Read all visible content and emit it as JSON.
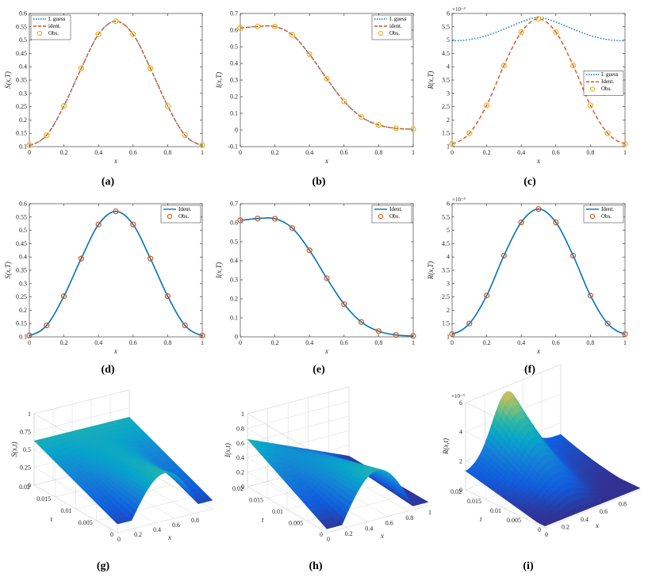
{
  "figure": {
    "captions": [
      "(a)",
      "(b)",
      "(c)",
      "(d)",
      "(e)",
      "(f)",
      "(g)",
      "(h)",
      "(i)"
    ]
  },
  "colors": {
    "guess": "#0072BD",
    "ident_dashed": "#D95319",
    "obs_yellow": "#EDB120",
    "ident_solid": "#0072BD",
    "obs_red": "#D95319",
    "axis": "#262626"
  },
  "chart_data": [
    {
      "id": "a",
      "type": "line",
      "xlabel": "x",
      "ylabel": "S(x,T)",
      "xlim": [
        0,
        1
      ],
      "ylim": [
        0.1,
        0.6
      ],
      "xticks": [
        "0",
        "0.2",
        "0.4",
        "0.6",
        "0.8",
        "1"
      ],
      "yticks": [
        "0.1",
        "0.15",
        "0.2",
        "0.25",
        "0.3",
        "0.35",
        "0.4",
        "0.45",
        "0.5",
        "0.55",
        "0.6"
      ],
      "legend": {
        "position": "top-left",
        "entries": [
          "I. guess",
          "ident.",
          "Obs."
        ]
      },
      "x": [
        0,
        0.1,
        0.2,
        0.3,
        0.4,
        0.5,
        0.6,
        0.7,
        0.8,
        0.9,
        1.0
      ],
      "series": [
        {
          "name": "I. guess",
          "style": "dotted",
          "values": [
            0.105,
            0.143,
            0.253,
            0.394,
            0.522,
            0.571,
            0.522,
            0.394,
            0.253,
            0.143,
            0.105
          ]
        },
        {
          "name": "ident.",
          "style": "dashed",
          "values": [
            0.105,
            0.143,
            0.253,
            0.394,
            0.522,
            0.571,
            0.522,
            0.394,
            0.253,
            0.143,
            0.105
          ]
        },
        {
          "name": "Obs.",
          "style": "marker",
          "values": [
            0.105,
            0.143,
            0.253,
            0.394,
            0.522,
            0.571,
            0.522,
            0.394,
            0.253,
            0.143,
            0.105
          ]
        }
      ]
    },
    {
      "id": "b",
      "type": "line",
      "xlabel": "x",
      "ylabel": "I(x,T)",
      "xlim": [
        0,
        1
      ],
      "ylim": [
        -0.1,
        0.7
      ],
      "xticks": [
        "0",
        "0.2",
        "0.4",
        "0.6",
        "0.8",
        "1"
      ],
      "yticks": [
        "-0.1",
        "0",
        "0.1",
        "0.2",
        "0.3",
        "0.4",
        "0.5",
        "0.6",
        "0.7"
      ],
      "legend": {
        "position": "top-right",
        "entries": [
          "I. guess",
          "ident.",
          "Obs."
        ]
      },
      "x": [
        0,
        0.1,
        0.2,
        0.3,
        0.4,
        0.5,
        0.6,
        0.7,
        0.8,
        0.9,
        1.0
      ],
      "series": [
        {
          "name": "I. guess",
          "style": "dotted",
          "values": [
            0.613,
            0.622,
            0.621,
            0.572,
            0.455,
            0.308,
            0.172,
            0.078,
            0.03,
            0.01,
            0.005
          ]
        },
        {
          "name": "ident.",
          "style": "dashed",
          "values": [
            0.613,
            0.622,
            0.621,
            0.572,
            0.455,
            0.308,
            0.172,
            0.078,
            0.03,
            0.01,
            0.005
          ]
        },
        {
          "name": "Obs.",
          "style": "marker",
          "values": [
            0.613,
            0.622,
            0.621,
            0.572,
            0.455,
            0.308,
            0.172,
            0.078,
            0.03,
            0.01,
            0.005
          ]
        }
      ]
    },
    {
      "id": "c",
      "type": "line",
      "xlabel": "x",
      "ylabel": "R(x,T)",
      "y_multiplier": "×10⁻³",
      "xlim": [
        0,
        1
      ],
      "ylim": [
        1,
        6
      ],
      "xticks": [
        "0",
        "0.2",
        "0.4",
        "0.6",
        "0.8",
        "1"
      ],
      "yticks": [
        "1",
        "1.5",
        "2",
        "2.5",
        "3",
        "3.5",
        "4",
        "4.5",
        "5",
        "5.5",
        "6"
      ],
      "legend": {
        "position": "right",
        "entries": [
          "I. guess",
          "Ident.",
          "Obs."
        ]
      },
      "x": [
        0,
        0.1,
        0.2,
        0.3,
        0.4,
        0.5,
        0.6,
        0.7,
        0.8,
        0.9,
        1.0
      ],
      "series": [
        {
          "name": "I. guess",
          "style": "dotted",
          "values": [
            4.97,
            5.02,
            5.17,
            5.41,
            5.68,
            5.85,
            5.68,
            5.41,
            5.17,
            5.02,
            4.97
          ]
        },
        {
          "name": "Ident.",
          "style": "dashed",
          "values": [
            1.1,
            1.5,
            2.55,
            4.05,
            5.3,
            5.8,
            5.3,
            4.05,
            2.55,
            1.5,
            1.1
          ]
        },
        {
          "name": "Obs.",
          "style": "marker",
          "values": [
            1.1,
            1.5,
            2.55,
            4.05,
            5.3,
            5.8,
            5.3,
            4.05,
            2.55,
            1.5,
            1.1
          ]
        }
      ]
    },
    {
      "id": "d",
      "type": "line",
      "xlabel": "x",
      "ylabel": "S(x,T)",
      "xlim": [
        0,
        1
      ],
      "ylim": [
        0.1,
        0.6
      ],
      "xticks": [
        "0",
        "0.2",
        "0.4",
        "0.6",
        "0.8",
        "1"
      ],
      "yticks": [
        "0.1",
        "0.15",
        "0.2",
        "0.25",
        "0.3",
        "0.35",
        "0.4",
        "0.45",
        "0.5",
        "0.55",
        "0.6"
      ],
      "legend": {
        "position": "top-right",
        "entries": [
          "Ident.",
          "Obs."
        ]
      },
      "x": [
        0,
        0.1,
        0.2,
        0.3,
        0.4,
        0.5,
        0.6,
        0.7,
        0.8,
        0.9,
        1.0
      ],
      "series": [
        {
          "name": "Ident.",
          "style": "solid",
          "values": [
            0.105,
            0.143,
            0.253,
            0.394,
            0.522,
            0.571,
            0.522,
            0.394,
            0.253,
            0.143,
            0.105
          ]
        },
        {
          "name": "Obs.",
          "style": "marker",
          "values": [
            0.105,
            0.143,
            0.253,
            0.394,
            0.522,
            0.571,
            0.522,
            0.394,
            0.253,
            0.143,
            0.105
          ]
        }
      ]
    },
    {
      "id": "e",
      "type": "line",
      "xlabel": "x",
      "ylabel": "I(x,T)",
      "xlim": [
        0,
        1
      ],
      "ylim": [
        0,
        0.7
      ],
      "xticks": [
        "0",
        "0.2",
        "0.4",
        "0.6",
        "0.8",
        "1"
      ],
      "yticks": [
        "0",
        "0.1",
        "0.2",
        "0.3",
        "0.4",
        "0.5",
        "0.6",
        "0.7"
      ],
      "legend": {
        "position": "top-right",
        "entries": [
          "Ident.",
          "Obs."
        ]
      },
      "x": [
        0,
        0.1,
        0.2,
        0.3,
        0.4,
        0.5,
        0.6,
        0.7,
        0.8,
        0.9,
        1.0
      ],
      "series": [
        {
          "name": "Ident.",
          "style": "solid",
          "values": [
            0.613,
            0.622,
            0.621,
            0.572,
            0.455,
            0.308,
            0.172,
            0.078,
            0.03,
            0.01,
            0.005
          ]
        },
        {
          "name": "Obs.",
          "style": "marker",
          "values": [
            0.613,
            0.622,
            0.621,
            0.572,
            0.455,
            0.308,
            0.172,
            0.078,
            0.03,
            0.01,
            0.005
          ]
        }
      ]
    },
    {
      "id": "f",
      "type": "line",
      "xlabel": "x",
      "ylabel": "R(x,T)",
      "y_multiplier": "×10⁻³",
      "xlim": [
        0,
        1
      ],
      "ylim": [
        1,
        6
      ],
      "xticks": [
        "0",
        "0.2",
        "0.4",
        "0.6",
        "0.8",
        "1"
      ],
      "yticks": [
        "1",
        "1.5",
        "2",
        "2.5",
        "3",
        "3.5",
        "4",
        "4.5",
        "5",
        "5.5",
        "6"
      ],
      "legend": {
        "position": "top-right",
        "entries": [
          "Ident.",
          "Obs."
        ]
      },
      "x": [
        0,
        0.1,
        0.2,
        0.3,
        0.4,
        0.5,
        0.6,
        0.7,
        0.8,
        0.9,
        1.0
      ],
      "series": [
        {
          "name": "Ident.",
          "style": "solid",
          "values": [
            1.1,
            1.5,
            2.55,
            4.05,
            5.3,
            5.8,
            5.3,
            4.05,
            2.55,
            1.5,
            1.1
          ]
        },
        {
          "name": "Obs.",
          "style": "marker",
          "values": [
            1.1,
            1.5,
            2.55,
            4.05,
            5.3,
            5.8,
            5.3,
            4.05,
            2.55,
            1.5,
            1.1
          ]
        }
      ]
    },
    {
      "id": "g",
      "type": "surface",
      "zlabel": "S(x,t)",
      "xlabel": "x",
      "ylabel": "t",
      "zticks": [
        "0",
        "0.25",
        "0.5",
        "0.75",
        "1"
      ],
      "xticks": [
        "0",
        "0.2",
        "0.4",
        "0.6",
        "0.8"
      ],
      "tticks": [
        "0",
        "0.005",
        "0.01",
        "0.015",
        "0.02"
      ],
      "zlim": [
        0,
        1
      ]
    },
    {
      "id": "h",
      "type": "surface",
      "zlabel": "I(x,t)",
      "xlabel": "x",
      "ylabel": "t",
      "zticks": [
        "0",
        "0.2",
        "0.4",
        "0.6",
        "0.8",
        "1"
      ],
      "xticks": [
        "0",
        "0.2",
        "0.4",
        "0.6",
        "0.8",
        "1"
      ],
      "tticks": [
        "0",
        "0.005",
        "0.01",
        "0.015",
        "0.02"
      ],
      "zlim": [
        0,
        1
      ]
    },
    {
      "id": "i",
      "type": "surface",
      "zlabel": "R(x,t)",
      "xlabel": "x",
      "ylabel": "t",
      "z_multiplier": "×10⁻³",
      "zticks": [
        "0",
        "2",
        "4",
        "6"
      ],
      "xticks": [
        "0",
        "0.2",
        "0.4",
        "0.6",
        "0.8"
      ],
      "tticks": [
        "0",
        "0.005",
        "0.01",
        "0.015",
        "0.02"
      ],
      "zlim": [
        0,
        6
      ]
    }
  ]
}
